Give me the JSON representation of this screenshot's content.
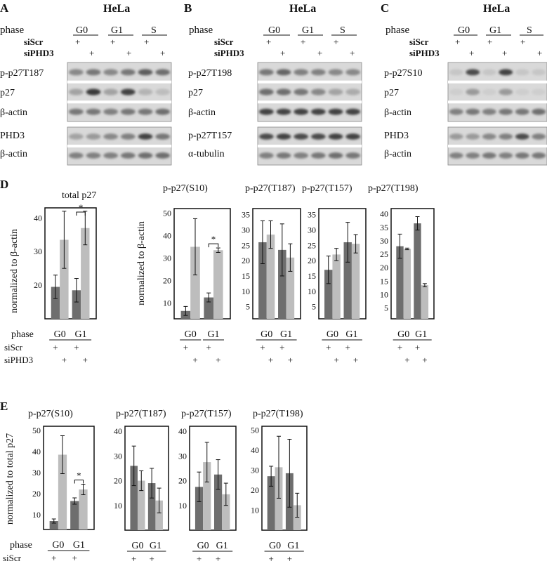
{
  "panels": {
    "A": {
      "letter": "A",
      "cell": "HeLa",
      "phase_label": "phase",
      "sicontrol": "siScr",
      "sitarget": "siPHD3",
      "phases": [
        "G0",
        "G1",
        "S"
      ],
      "blot_labels": [
        "p-p27T187",
        "p27",
        "β-actin",
        "PHD3",
        "β-actin"
      ]
    },
    "B": {
      "letter": "B",
      "cell": "HeLa",
      "phase_label": "phase",
      "sicontrol": "siScr",
      "sitarget": "siPHD3",
      "phases": [
        "G0",
        "G1",
        "S"
      ],
      "blot_labels": [
        "p-p27T198",
        "p27",
        "β-actin",
        "p-p27T157",
        "α-tubulin"
      ]
    },
    "C": {
      "letter": "C",
      "cell": "HeLa",
      "phase_label": "phase",
      "sicontrol": "siScr",
      "sitarget": "siPHD3",
      "phases": [
        "G0",
        "G1",
        "S"
      ],
      "blot_labels": [
        "p-p27S10",
        "p27",
        "β-actin",
        "PHD3",
        "β-actin"
      ]
    },
    "D": {
      "letter": "D",
      "ylabel_left": "normalized to β-actin",
      "ylabel_right": "normalized to β-actin"
    },
    "E": {
      "letter": "E",
      "ylabel": "normalized to total p27"
    }
  },
  "legend_rows": {
    "phase": "phase",
    "siScr": "siScr",
    "siPHD3": "siPHD3",
    "plus": "+",
    "phases": [
      "G0",
      "G1"
    ]
  },
  "colors": {
    "siScr": "#6e6e6e",
    "siPHD3": "#bdbdbd"
  },
  "chart_data": [
    {
      "type": "bar",
      "id": "D1",
      "title": "total p27",
      "categories": [
        "G0",
        "G1"
      ],
      "ylim": [
        10,
        43
      ],
      "yticks": [
        20,
        30,
        40
      ],
      "series": [
        {
          "values": [
            19.5,
            18.5
          ],
          "errors": [
            3.5,
            3.5
          ]
        },
        {
          "values": [
            33.5,
            37
          ],
          "errors": [
            8.5,
            5
          ]
        }
      ],
      "annotations": [
        "*"
      ]
    },
    {
      "type": "bar",
      "id": "D2",
      "title": "p-p27(S10)",
      "categories": [
        "G0",
        "G1"
      ],
      "ylim": [
        3,
        52
      ],
      "yticks": [
        10,
        20,
        30,
        40,
        50
      ],
      "series": [
        {
          "values": [
            6.5,
            12.5
          ],
          "errors": [
            2,
            2
          ]
        },
        {
          "values": [
            35,
            33.5
          ],
          "errors": [
            12.5,
            1
          ]
        }
      ],
      "annotations": [
        "*"
      ]
    },
    {
      "type": "bar",
      "id": "D3",
      "title": "p-p27(T187)",
      "categories": [
        "G0",
        "G1"
      ],
      "ylim": [
        1,
        37
      ],
      "yticks": [
        5,
        10,
        15,
        20,
        25,
        30,
        35
      ],
      "series": [
        {
          "values": [
            26,
            23.5
          ],
          "errors": [
            7,
            8.5
          ]
        },
        {
          "values": [
            28.5,
            21
          ],
          "errors": [
            4.5,
            4.5
          ]
        }
      ]
    },
    {
      "type": "bar",
      "id": "D4",
      "title": "p-p27(T157)",
      "categories": [
        "G0",
        "G1"
      ],
      "ylim": [
        1,
        37
      ],
      "yticks": [
        5,
        10,
        15,
        20,
        25,
        30,
        35
      ],
      "series": [
        {
          "values": [
            17,
            26
          ],
          "errors": [
            4.5,
            6.5
          ]
        },
        {
          "values": [
            22,
            25.5
          ],
          "errors": [
            2,
            3
          ]
        }
      ]
    },
    {
      "type": "bar",
      "id": "D5",
      "title": "p-p27(T198)",
      "categories": [
        "G0",
        "G1"
      ],
      "ylim": [
        1,
        42
      ],
      "yticks": [
        5,
        10,
        15,
        20,
        25,
        30,
        35,
        40
      ],
      "series": [
        {
          "values": [
            28,
            36.5
          ],
          "errors": [
            4.5,
            2.5
          ]
        },
        {
          "values": [
            27,
            13.5
          ],
          "errors": [
            0.3,
            0.6
          ]
        }
      ]
    },
    {
      "type": "bar",
      "id": "E1",
      "title": "p-p27(S10)",
      "categories": [
        "G0",
        "G1"
      ],
      "ylim": [
        3,
        52
      ],
      "yticks": [
        10,
        20,
        30,
        40,
        50
      ],
      "series": [
        {
          "values": [
            7,
            16.5
          ],
          "errors": [
            1,
            1.5
          ]
        },
        {
          "values": [
            38.5,
            22
          ],
          "errors": [
            9,
            2.5
          ]
        }
      ],
      "annotations": [
        "*"
      ]
    },
    {
      "type": "bar",
      "id": "E2",
      "title": "p-p27(T187)",
      "categories": [
        "G0",
        "G1"
      ],
      "ylim": [
        0,
        42
      ],
      "yticks": [
        10,
        20,
        30,
        40
      ],
      "series": [
        {
          "values": [
            26,
            19
          ],
          "errors": [
            8,
            6
          ]
        },
        {
          "values": [
            20,
            12
          ],
          "errors": [
            4,
            5
          ]
        }
      ]
    },
    {
      "type": "bar",
      "id": "E3",
      "title": "p-p27(T157)",
      "categories": [
        "G0",
        "G1"
      ],
      "ylim": [
        0,
        42
      ],
      "yticks": [
        10,
        20,
        30,
        40
      ],
      "series": [
        {
          "values": [
            17.5,
            22.5
          ],
          "errors": [
            6,
            6
          ]
        },
        {
          "values": [
            27.5,
            14.5
          ],
          "errors": [
            8,
            4.5
          ]
        }
      ]
    },
    {
      "type": "bar",
      "id": "E4",
      "title": "p-p27(T198)",
      "categories": [
        "G0",
        "G1"
      ],
      "ylim": [
        0,
        52
      ],
      "yticks": [
        10,
        20,
        30,
        40,
        50
      ],
      "series": [
        {
          "values": [
            27,
            28.5
          ],
          "errors": [
            5,
            17
          ]
        },
        {
          "values": [
            31.5,
            12.5
          ],
          "errors": [
            15.5,
            6
          ]
        }
      ]
    }
  ]
}
